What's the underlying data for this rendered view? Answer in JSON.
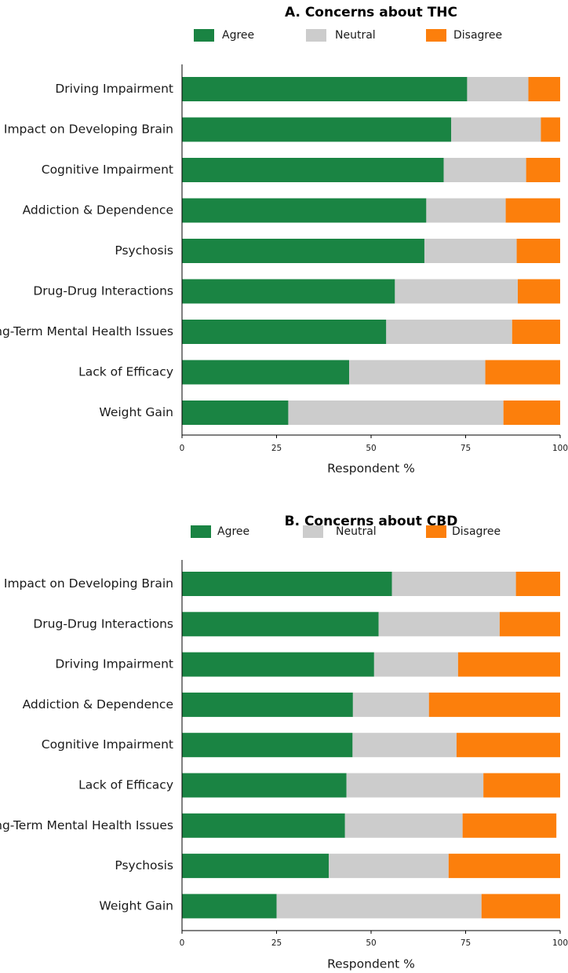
{
  "chart_data": [
    {
      "type": "bar",
      "orientation": "horizontal",
      "stacked": true,
      "title": "A. Concerns about THC",
      "xlabel": "Respondent %",
      "ylabel": "",
      "xlim": [
        0,
        100
      ],
      "xticks": [
        "0",
        "25",
        "50",
        "75",
        "100"
      ],
      "legend_placement": "top",
      "categories": [
        "Driving Impairment",
        "Impact on Developing Brain",
        "Cognitive Impairment",
        "Addiction & Dependence",
        "Psychosis",
        "Drug-Drug Interactions",
        "Long-Term Mental Health Issues",
        "Lack of Efficacy",
        "Weight Gain"
      ],
      "series": [
        {
          "name": "Agree",
          "color": "#1a8443",
          "values": [
            75.4,
            71.2,
            69.2,
            64.6,
            64.1,
            56.3,
            54.0,
            44.2,
            28.1
          ]
        },
        {
          "name": "Neutral",
          "color": "#cccccc",
          "values": [
            16.2,
            23.7,
            21.8,
            21.0,
            24.4,
            32.5,
            33.3,
            36.0,
            56.9
          ]
        },
        {
          "name": "Disagree",
          "color": "#fc7f0c",
          "values": [
            8.4,
            5.1,
            9.0,
            14.4,
            11.5,
            11.2,
            12.7,
            19.8,
            15.0
          ]
        }
      ]
    },
    {
      "type": "bar",
      "orientation": "horizontal",
      "stacked": true,
      "title": "B. Concerns about CBD",
      "xlabel": "Respondent %",
      "ylabel": "",
      "xlim": [
        0,
        100
      ],
      "xticks": [
        "0",
        "25",
        "50",
        "75",
        "100"
      ],
      "legend_placement": "top",
      "categories": [
        "Impact on Developing Brain",
        "Drug-Drug Interactions",
        "Driving Impairment",
        "Addiction & Dependence",
        "Cognitive Impairment",
        "Lack of Efficacy",
        "Long-Term Mental Health Issues",
        "Psychosis",
        "Weight Gain"
      ],
      "series": [
        {
          "name": "Agree",
          "color": "#1a8443",
          "values": [
            55.5,
            52.0,
            50.8,
            45.2,
            45.1,
            43.5,
            43.1,
            38.8,
            25.0
          ]
        },
        {
          "name": "Neutral",
          "color": "#cccccc",
          "values": [
            32.8,
            32.0,
            22.2,
            20.1,
            27.5,
            36.2,
            31.1,
            31.7,
            54.2
          ]
        },
        {
          "name": "Disagree",
          "color": "#fc7f0c",
          "values": [
            11.7,
            16.0,
            27.0,
            34.7,
            27.4,
            20.3,
            24.8,
            29.5,
            20.8
          ]
        }
      ]
    }
  ]
}
